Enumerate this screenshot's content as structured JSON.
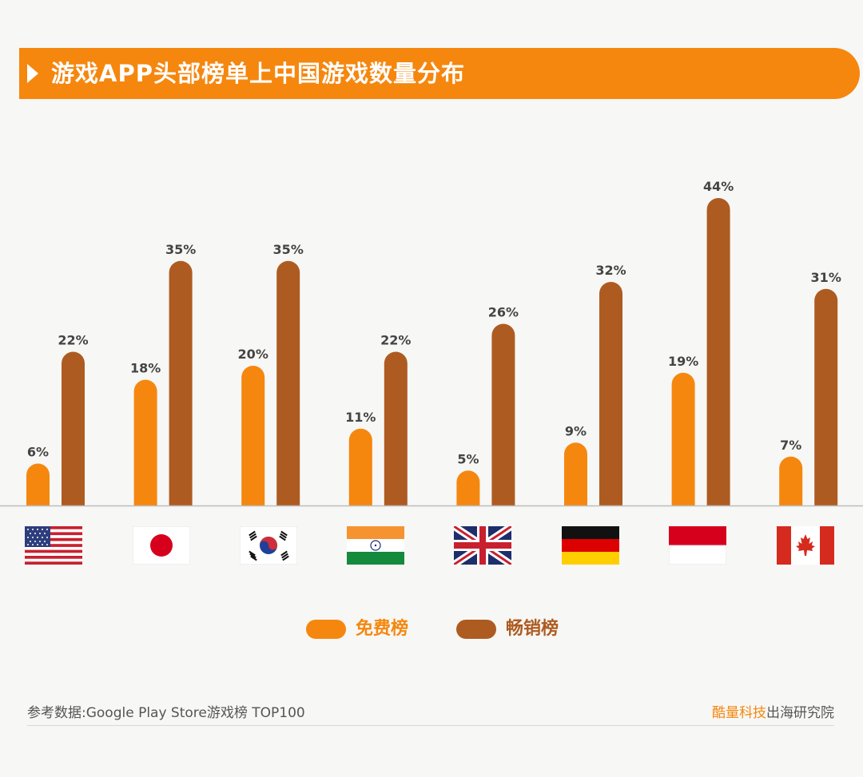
{
  "banner": {
    "title": "游戏APP头部榜单上中国游戏数量分布"
  },
  "legend": [
    {
      "label": "免费榜",
      "color": "#f5870f"
    },
    {
      "label": "畅销榜",
      "color": "#ae5b21"
    }
  ],
  "flags": [
    "us-flag",
    "japan-flag",
    "south-korea-flag",
    "india-flag",
    "uk-flag",
    "germany-flag",
    "indonesia-flag",
    "canada-flag"
  ],
  "chart_data": {
    "type": "bar",
    "title": "游戏APP头部榜单上中国游戏数量分布",
    "categories": [
      "美国",
      "日本",
      "韩国",
      "印度",
      "英国",
      "德国",
      "印度尼西亚",
      "加拿大"
    ],
    "series": [
      {
        "name": "免费榜",
        "values": [
          6,
          18,
          20,
          11,
          5,
          9,
          19,
          7
        ],
        "labels": [
          "6%",
          "18%",
          "20%",
          "11%",
          "5%",
          "9%",
          "19%",
          "7%"
        ],
        "color": "#f5870f"
      },
      {
        "name": "畅销榜",
        "values": [
          22,
          35,
          35,
          22,
          26,
          32,
          44,
          31
        ],
        "labels": [
          "22%",
          "35%",
          "35%",
          "22%",
          "26%",
          "32%",
          "44%",
          "31%"
        ],
        "color": "#ae5b21"
      }
    ],
    "ylim": [
      0,
      44
    ],
    "grid": false,
    "legend_position": "bottom"
  },
  "footer": {
    "source": "参考数据:Google Play Store游戏榜 TOP100",
    "brand_accent": "酷量科技",
    "brand_rest": "出海研究院"
  }
}
